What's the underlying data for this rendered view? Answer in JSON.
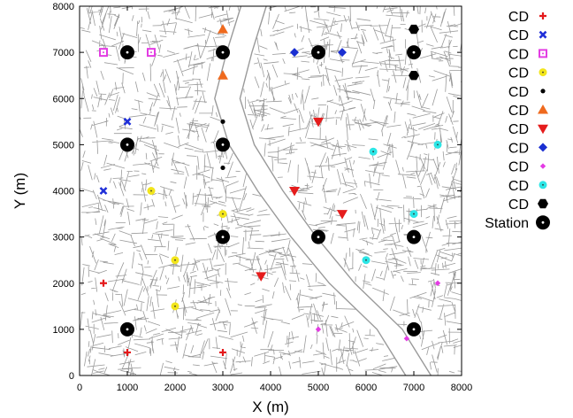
{
  "chart_data": {
    "type": "scatter",
    "xlabel": "X (m)",
    "ylabel": "Y (m)",
    "xlim": [
      0,
      8000
    ],
    "ylim": [
      0,
      8000
    ],
    "xticks": [
      0,
      1000,
      2000,
      3000,
      4000,
      5000,
      6000,
      7000,
      8000
    ],
    "yticks": [
      0,
      1000,
      2000,
      3000,
      4000,
      5000,
      6000,
      7000,
      8000
    ],
    "xtick_labels": [
      "0",
      "1000",
      "2000",
      "3000",
      "4000",
      "5000",
      "6000",
      "7000",
      "8000"
    ],
    "ytick_labels": [
      "0",
      "1000",
      "2000",
      "3000",
      "4000",
      "5000",
      "6000",
      "7000",
      "8000"
    ],
    "grid": false,
    "background": "street map",
    "legend_position": "outside-right",
    "series": [
      {
        "name": "CD",
        "marker": "plus",
        "color": "#e41a1c",
        "points": [
          [
            500,
            2000
          ],
          [
            1000,
            500
          ],
          [
            3000,
            500
          ]
        ]
      },
      {
        "name": "CD",
        "marker": "x",
        "color": "#1f2fd8",
        "points": [
          [
            1000,
            5500
          ],
          [
            500,
            4000
          ]
        ]
      },
      {
        "name": "CD",
        "marker": "square-open",
        "color": "#e33de3",
        "points": [
          [
            500,
            7000
          ],
          [
            1500,
            7000
          ]
        ]
      },
      {
        "name": "CD",
        "marker": "circle",
        "color": "#f2e51c",
        "points": [
          [
            1500,
            4000
          ],
          [
            3000,
            3500
          ],
          [
            2000,
            2500
          ],
          [
            2000,
            1500
          ]
        ]
      },
      {
        "name": "CD",
        "marker": "dot",
        "color": "#000000",
        "points": [
          [
            3000,
            5500
          ],
          [
            3000,
            4500
          ]
        ]
      },
      {
        "name": "CD",
        "marker": "triangle-up",
        "color": "#ef6a1e",
        "points": [
          [
            3000,
            7500
          ],
          [
            3000,
            6500
          ]
        ]
      },
      {
        "name": "CD",
        "marker": "triangle-down",
        "color": "#e51c1c",
        "points": [
          [
            5000,
            5500
          ],
          [
            4500,
            4000
          ],
          [
            5500,
            3500
          ],
          [
            3800,
            2150
          ]
        ]
      },
      {
        "name": "CD",
        "marker": "diamond",
        "color": "#1a2fd1",
        "points": [
          [
            4500,
            7000
          ],
          [
            5500,
            7000
          ]
        ]
      },
      {
        "name": "CD",
        "marker": "diamond-small",
        "color": "#e43be4",
        "points": [
          [
            7500,
            2000
          ],
          [
            5000,
            1000
          ],
          [
            6850,
            800
          ]
        ]
      },
      {
        "name": "CD",
        "marker": "circle",
        "color": "#2ce6e6",
        "points": [
          [
            6150,
            4850
          ],
          [
            7500,
            5000
          ],
          [
            7000,
            3500
          ],
          [
            6000,
            2500
          ]
        ]
      },
      {
        "name": "CD",
        "marker": "hexagon",
        "color": "#000000",
        "points": [
          [
            7000,
            7500
          ],
          [
            7000,
            6500
          ]
        ]
      },
      {
        "name": "Station",
        "marker": "station",
        "color": "#000000",
        "points": [
          [
            1000,
            7000
          ],
          [
            3000,
            7000
          ],
          [
            5000,
            7000
          ],
          [
            7000,
            7000
          ],
          [
            1000,
            5000
          ],
          [
            3000,
            5000
          ],
          [
            3000,
            3000
          ],
          [
            5000,
            3000
          ],
          [
            7000,
            3000
          ],
          [
            1000,
            1000
          ],
          [
            7000,
            1000
          ]
        ]
      }
    ]
  }
}
